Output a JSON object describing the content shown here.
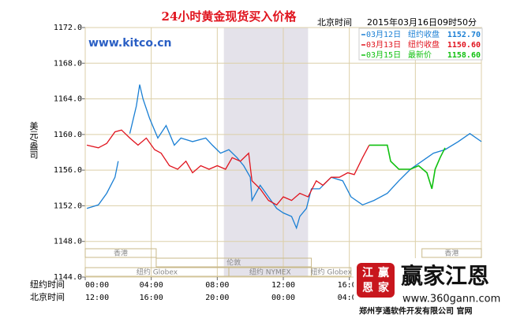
{
  "chart_data": {
    "type": "line",
    "title": "24小时黄金现货买入价格",
    "time_label": "北京时间",
    "timestamp": "2015年03月16日09时50分",
    "watermark": "www.kitco.cn",
    "y_label": "美元/盎司",
    "ylim": [
      1144,
      1172
    ],
    "yticks": [
      {
        "value": 1144,
        "label": "1144.0"
      },
      {
        "value": 1148,
        "label": "1148.0"
      },
      {
        "value": 1152,
        "label": "1152.0"
      },
      {
        "value": 1156,
        "label": "1156.0"
      },
      {
        "value": 1160,
        "label": "1160.0"
      },
      {
        "value": 1164,
        "label": "1164.0"
      },
      {
        "value": 1168,
        "label": "1168.0"
      },
      {
        "value": 1172,
        "label": "1172.0"
      }
    ],
    "xlim": [
      0,
      24
    ],
    "xticks": [
      {
        "value": 0,
        "label": "00:00"
      },
      {
        "value": 4,
        "label": "04:00"
      },
      {
        "value": 8,
        "label": "08:00"
      },
      {
        "value": 12,
        "label": "12:00"
      },
      {
        "value": 16,
        "label": "16:00"
      }
    ],
    "x_row_labels": [
      "纽约时间",
      "北京时间"
    ],
    "xticks_beijing": [
      "12:00",
      "16:00",
      "20:00",
      "00:00",
      "04:00"
    ],
    "grid_lines_x": [
      0,
      4,
      8,
      12,
      16,
      20,
      24
    ],
    "grid": true,
    "shade": [
      8.4,
      13.5
    ],
    "sessions": [
      {
        "name": "香港",
        "range": [
          0,
          4.3
        ],
        "row": 0
      },
      {
        "name": "伦敦",
        "range": [
          4.3,
          13.7
        ],
        "row": 1
      },
      {
        "name": "纽约 Globex",
        "range": [
          0,
          8.7
        ],
        "row": 2
      },
      {
        "name": "纽约 NYMEX",
        "range": [
          8.7,
          13.7
        ],
        "row": 2
      },
      {
        "name": "纽约 Globex",
        "range": [
          13.7,
          16.1
        ],
        "row": 2
      },
      {
        "name": "香港",
        "range": [
          20.4,
          24
        ],
        "row": 0
      }
    ],
    "series": [
      {
        "name": "03月12日",
        "label": "纽约收盘",
        "last": "1152.70",
        "color": "#1a7fd4",
        "x": [
          0.1,
          0.8,
          1.3,
          1.8,
          2.0,
          2.3,
          2.7,
          3.1,
          3.3,
          3.5,
          3.9,
          4.4,
          4.9,
          5.4,
          5.8,
          6.5,
          7.3,
          7.7,
          8.2,
          8.7,
          9.2,
          9.6,
          10.0,
          10.1,
          10.6,
          11.1,
          11.6,
          12.0,
          12.5,
          12.8,
          13.0,
          13.4,
          13.7,
          14.2,
          14.9,
          15.6,
          16.1,
          16.8,
          17.5,
          18.3,
          19.0,
          19.7,
          20.4,
          21.1,
          21.8,
          22.6,
          23.3,
          24.0
        ],
        "values": [
          1151.7,
          1152.1,
          1153.4,
          1155.2,
          1157.0,
          null,
          1160.1,
          1163.2,
          1165.6,
          1164.0,
          1161.8,
          1159.6,
          1161.0,
          1158.8,
          1159.6,
          1159.2,
          1159.6,
          1158.8,
          1157.9,
          1158.3,
          1157.4,
          1156.5,
          1155.2,
          1152.6,
          1154.3,
          1153.0,
          1151.7,
          1151.2,
          1150.8,
          1149.5,
          1150.8,
          1151.7,
          1153.9,
          1153.9,
          1155.2,
          1154.8,
          1153.0,
          1152.1,
          1152.6,
          1153.4,
          1154.8,
          1156.1,
          1157.0,
          1157.9,
          1158.3,
          1159.2,
          1160.1,
          1159.2
        ]
      },
      {
        "name": "03月13日",
        "label": "纽约收盘",
        "last": "1150.60",
        "color": "#e0141e",
        "x": [
          0.1,
          0.8,
          1.3,
          1.8,
          2.2,
          2.7,
          3.2,
          3.7,
          4.2,
          4.6,
          5.1,
          5.6,
          6.1,
          6.5,
          7.0,
          7.5,
          8.0,
          8.5,
          8.9,
          9.4,
          9.9,
          10.1,
          10.6,
          11.1,
          11.6,
          12.0,
          12.5,
          13.0,
          13.5,
          14.0,
          14.4,
          14.9,
          15.4,
          15.9,
          16.3,
          16.8,
          17.2
        ],
        "values": [
          1158.8,
          1158.5,
          1159.0,
          1160.3,
          1160.5,
          1159.6,
          1158.8,
          1159.6,
          1158.3,
          1157.9,
          1156.5,
          1156.1,
          1157.0,
          1155.7,
          1156.5,
          1156.1,
          1156.5,
          1156.1,
          1157.4,
          1157.0,
          1157.9,
          1154.8,
          1153.9,
          1152.6,
          1152.1,
          1153.0,
          1152.6,
          1153.4,
          1153.0,
          1154.8,
          1154.3,
          1155.2,
          1155.2,
          1155.7,
          1155.5,
          1157.4,
          1158.8
        ]
      },
      {
        "name": "03月15日",
        "label": "最新价",
        "last": "1158.60",
        "color": "#10c010",
        "x": [
          17.2,
          18.3,
          18.5,
          19.0,
          19.7,
          20.2,
          20.7,
          21.0,
          21.2,
          21.5,
          21.8
        ],
        "values": [
          1158.8,
          1158.8,
          1157.0,
          1156.1,
          1156.1,
          1156.5,
          1155.7,
          1153.9,
          1156.1,
          1157.4,
          1158.5
        ]
      }
    ]
  },
  "logo": {
    "seal": [
      "江",
      "赢",
      "恩",
      "家"
    ],
    "name": "赢家江恩",
    "url": "www.360gann.com",
    "company": "郑州亨通软件开发有限公司 官网"
  }
}
